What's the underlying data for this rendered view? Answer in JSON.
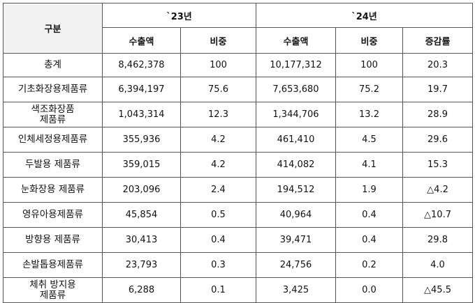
{
  "table": {
    "header": {
      "category": "구분",
      "year1": "`23년",
      "year2": "`24년",
      "sub": [
        "수출액",
        "비중",
        "수출액",
        "비중",
        "증감률"
      ]
    },
    "rows": [
      {
        "category": "총계",
        "export23": "8,462,378",
        "share23": "100",
        "export24": "10,177,312",
        "share24": "100",
        "change": "20.3"
      },
      {
        "category": "기초화장용제품류",
        "export23": "6,394,197",
        "share23": "75.6",
        "export24": "7,653,680",
        "share24": "75.2",
        "change": "19.7"
      },
      {
        "category": "색조화장품\n제품류",
        "export23": "1,043,314",
        "share23": "12.3",
        "export24": "1,344,706",
        "share24": "13.2",
        "change": "28.9"
      },
      {
        "category": "인체세정용제품류",
        "export23": "355,936",
        "share23": "4.2",
        "export24": "461,410",
        "share24": "4.5",
        "change": "29.6"
      },
      {
        "category": "두발용 제품류",
        "export23": "359,015",
        "share23": "4.2",
        "export24": "414,082",
        "share24": "4.1",
        "change": "15.3"
      },
      {
        "category": "눈화장용 제품류",
        "export23": "203,096",
        "share23": "2.4",
        "export24": "194,512",
        "share24": "1.9",
        "change": "△4.2"
      },
      {
        "category": "영유아용제품류",
        "export23": "45,854",
        "share23": "0.5",
        "export24": "40,964",
        "share24": "0.4",
        "change": "△10.7"
      },
      {
        "category": "방향용 제품류",
        "export23": "30,413",
        "share23": "0.4",
        "export24": "39,471",
        "share24": "0.4",
        "change": "29.8"
      },
      {
        "category": "손발톱용제품류",
        "export23": "23,793",
        "share23": "0.3",
        "export24": "24,756",
        "share24": "0.2",
        "change": "4.0"
      },
      {
        "category": "체취 방지용\n제품류",
        "export23": "6,288",
        "share23": "0.1",
        "export24": "3,425",
        "share24": "0.0",
        "change": "△45.5"
      }
    ]
  }
}
